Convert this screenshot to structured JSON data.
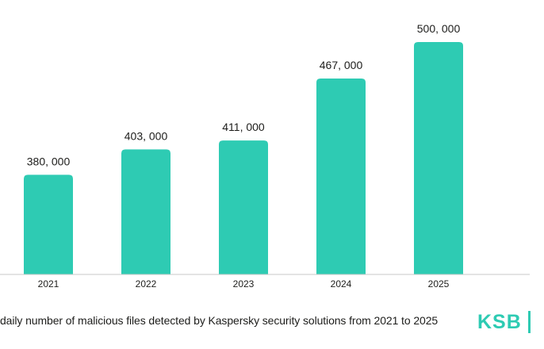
{
  "colors": {
    "bar": "#2ecbb3",
    "axis": "#c8c8c8",
    "text": "#1d1d1b",
    "brand": "#2ecbb3"
  },
  "chart_data": {
    "type": "bar",
    "categories": [
      "2021",
      "2022",
      "2023",
      "2024",
      "2025"
    ],
    "values": [
      380000,
      403000,
      411000,
      467000,
      500000
    ],
    "value_labels": [
      "380, 000",
      "403, 000",
      "411, 000",
      "467, 000",
      "500, 000"
    ],
    "ylim": [
      290000,
      500000
    ],
    "grid": false,
    "legend": "none"
  },
  "caption": {
    "text": "daily number of malicious files detected by Kaspersky security solutions from 2021 to 2025"
  },
  "logo": {
    "text": "KSB"
  }
}
